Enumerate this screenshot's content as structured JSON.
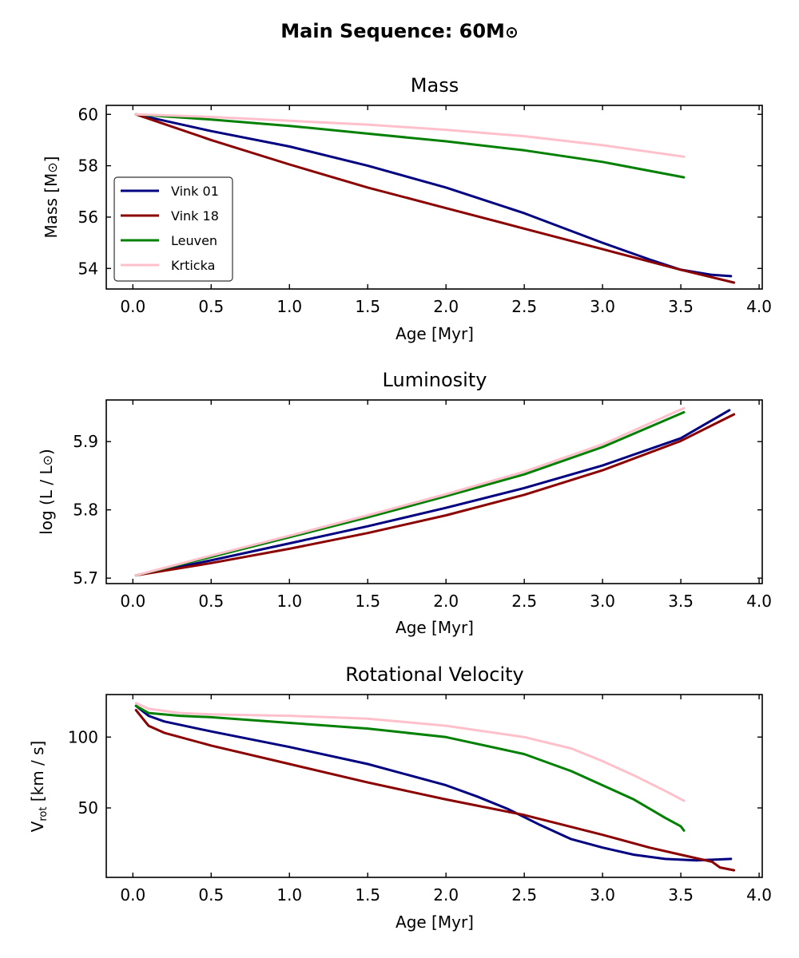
{
  "figure": {
    "title_main": "Main Sequence: 60M",
    "title_sym": "⊙"
  },
  "chart_data": [
    {
      "type": "line",
      "title": "Mass",
      "xlabel": "Age [Myr]",
      "ylabel_main": "Mass [M",
      "ylabel_sym": "⊙",
      "ylabel_end": "]",
      "xlim": [
        -0.17,
        4.02
      ],
      "ylim": [
        53.2,
        60.35
      ],
      "xticks": [
        "0.0",
        "0.5",
        "1.0",
        "1.5",
        "2.0",
        "2.5",
        "3.0",
        "3.5",
        "4.0"
      ],
      "yticks": [
        "54",
        "56",
        "58",
        "60"
      ],
      "legend": {
        "position": "lower-left",
        "entries": [
          "Vink 01",
          "Vink 18",
          "Leuven",
          "Krticka"
        ]
      },
      "series": [
        {
          "name": "Vink 01",
          "color": "#000080",
          "x": [
            0.02,
            0.5,
            1.0,
            1.5,
            2.0,
            2.5,
            3.0,
            3.3,
            3.5,
            3.7,
            3.82
          ],
          "y": [
            60.0,
            59.35,
            58.75,
            58.0,
            57.15,
            56.15,
            55.0,
            54.35,
            53.95,
            53.75,
            53.7
          ]
        },
        {
          "name": "Vink 18",
          "color": "#8b0000",
          "x": [
            0.02,
            0.5,
            1.0,
            1.5,
            2.0,
            2.5,
            3.0,
            3.5,
            3.84
          ],
          "y": [
            60.0,
            59.0,
            58.05,
            57.15,
            56.35,
            55.55,
            54.75,
            53.95,
            53.45
          ]
        },
        {
          "name": "Leuven",
          "color": "#008000",
          "x": [
            0.02,
            0.5,
            1.0,
            1.5,
            2.0,
            2.5,
            3.0,
            3.52
          ],
          "y": [
            60.0,
            59.8,
            59.55,
            59.25,
            58.95,
            58.6,
            58.15,
            57.55
          ]
        },
        {
          "name": "Krticka",
          "color": "#ffc0cb",
          "x": [
            0.02,
            0.5,
            1.0,
            1.5,
            2.0,
            2.5,
            3.0,
            3.52
          ],
          "y": [
            60.0,
            59.9,
            59.75,
            59.6,
            59.4,
            59.15,
            58.8,
            58.35
          ]
        }
      ]
    },
    {
      "type": "line",
      "title": "Luminosity",
      "xlabel": "Age [Myr]",
      "ylabel_main": "log (L / L",
      "ylabel_sym": "⊙",
      "ylabel_end": ")",
      "xlim": [
        -0.17,
        4.02
      ],
      "ylim": [
        5.692,
        5.961
      ],
      "xticks": [
        "0.0",
        "0.5",
        "1.0",
        "1.5",
        "2.0",
        "2.5",
        "3.0",
        "3.5",
        "4.0"
      ],
      "yticks": [
        "5.7",
        "5.8",
        "5.9"
      ],
      "series": [
        {
          "name": "Vink 01",
          "color": "#000080",
          "x": [
            0.02,
            0.5,
            1.0,
            1.5,
            2.0,
            2.5,
            3.0,
            3.5,
            3.81
          ],
          "y": [
            5.704,
            5.726,
            5.751,
            5.776,
            5.803,
            5.832,
            5.865,
            5.905,
            5.946
          ]
        },
        {
          "name": "Vink 18",
          "color": "#8b0000",
          "x": [
            0.02,
            0.5,
            1.0,
            1.5,
            2.0,
            2.5,
            3.0,
            3.5,
            3.84
          ],
          "y": [
            5.704,
            5.722,
            5.743,
            5.766,
            5.792,
            5.822,
            5.858,
            5.901,
            5.94
          ]
        },
        {
          "name": "Leuven",
          "color": "#008000",
          "x": [
            0.02,
            0.5,
            1.0,
            1.5,
            2.0,
            2.5,
            3.0,
            3.52
          ],
          "y": [
            5.704,
            5.731,
            5.76,
            5.789,
            5.82,
            5.852,
            5.892,
            5.943
          ]
        },
        {
          "name": "Krticka",
          "color": "#ffc0cb",
          "x": [
            0.02,
            0.5,
            1.0,
            1.5,
            2.0,
            2.5,
            3.0,
            3.52
          ],
          "y": [
            5.704,
            5.733,
            5.762,
            5.792,
            5.823,
            5.856,
            5.896,
            5.949
          ]
        }
      ]
    },
    {
      "type": "line",
      "title": "Rotational Velocity",
      "xlabel": "Age [Myr]",
      "ylabel_main": "V",
      "ylabel_sub": "rot",
      "ylabel_end": " [km / s]",
      "xlim": [
        -0.17,
        4.02
      ],
      "ylim": [
        1,
        130
      ],
      "xticks": [
        "0.0",
        "0.5",
        "1.0",
        "1.5",
        "2.0",
        "2.5",
        "3.0",
        "3.5",
        "4.0"
      ],
      "yticks": [
        "50",
        "100"
      ],
      "series": [
        {
          "name": "Vink 01",
          "color": "#000080",
          "x": [
            0.02,
            0.1,
            0.2,
            0.5,
            1.0,
            1.5,
            2.0,
            2.2,
            2.4,
            2.6,
            2.8,
            3.0,
            3.2,
            3.4,
            3.6,
            3.82
          ],
          "y": [
            122,
            115,
            111,
            104,
            93,
            81,
            66,
            58,
            49,
            38,
            28,
            22,
            17,
            14,
            13,
            14
          ]
        },
        {
          "name": "Vink 18",
          "color": "#8b0000",
          "x": [
            0.02,
            0.1,
            0.2,
            0.5,
            1.0,
            1.5,
            2.0,
            2.5,
            3.0,
            3.3,
            3.5,
            3.7,
            3.75,
            3.84
          ],
          "y": [
            119,
            108,
            103,
            94,
            81,
            68,
            56,
            45,
            31,
            22,
            17,
            12,
            8,
            6
          ]
        },
        {
          "name": "Leuven",
          "color": "#008000",
          "x": [
            0.02,
            0.1,
            0.3,
            0.5,
            1.0,
            1.5,
            2.0,
            2.5,
            2.8,
            3.0,
            3.2,
            3.4,
            3.5,
            3.52
          ],
          "y": [
            122,
            117,
            115,
            114,
            110,
            106,
            100,
            88,
            76,
            66,
            56,
            43,
            37,
            34
          ]
        },
        {
          "name": "Krticka",
          "color": "#ffc0cb",
          "x": [
            0.02,
            0.1,
            0.3,
            0.5,
            1.0,
            1.5,
            2.0,
            2.5,
            2.8,
            3.0,
            3.2,
            3.4,
            3.52
          ],
          "y": [
            124,
            120,
            117,
            116,
            115,
            113,
            108,
            100,
            92,
            83,
            73,
            62,
            55
          ]
        }
      ]
    }
  ]
}
